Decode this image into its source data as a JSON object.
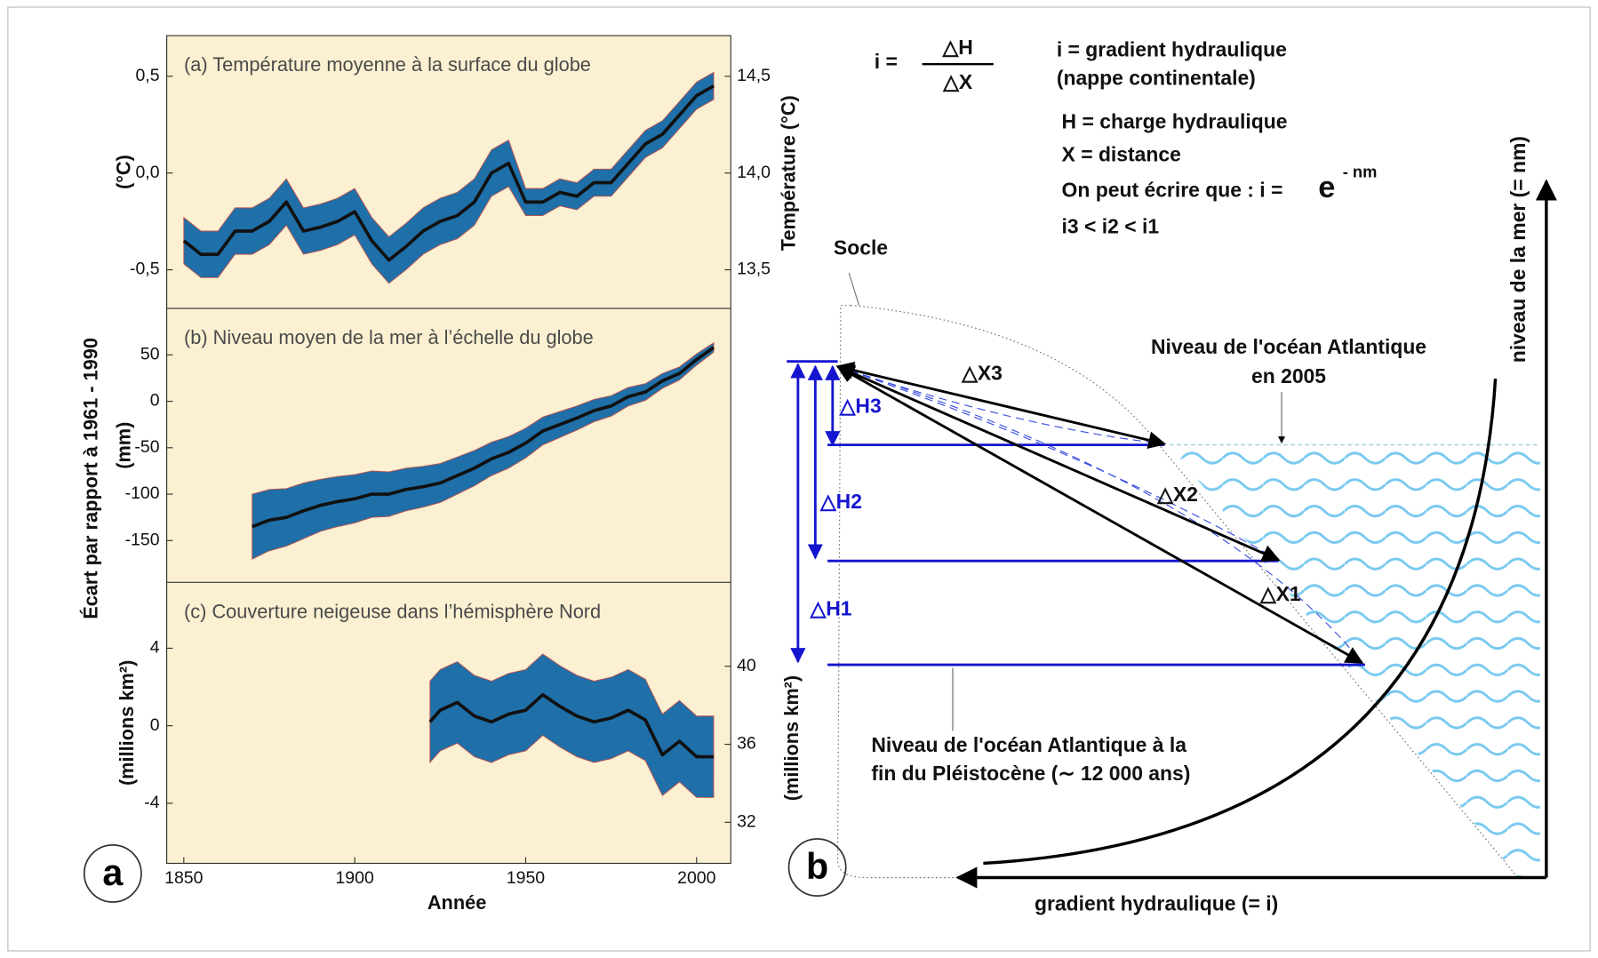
{
  "figure": {
    "ylabel": "Écart par rapport à 1961 - 1990",
    "xlabel": "Année",
    "panel_a": "a",
    "panel_b": "b"
  },
  "chart_data": [
    {
      "type": "line",
      "title": "(a) Température moyenne à la surface du globe",
      "ylabel": "(°C)",
      "y2label": "Température (°C)",
      "xlim": [
        1845,
        2010
      ],
      "ylim": [
        -0.7,
        0.71
      ],
      "y2lim": [
        13.3,
        14.71
      ],
      "yticks": [
        {
          "value": 0.5,
          "label": "0,5"
        },
        {
          "value": 0,
          "label": "0,0"
        },
        {
          "value": -0.5,
          "label": "-0,5"
        }
      ],
      "y2ticks": [
        {
          "value": 14.5,
          "label": "14,5"
        },
        {
          "value": 14,
          "label": "14,0"
        },
        {
          "value": 13.5,
          "label": "13,5"
        }
      ],
      "x": [
        1850,
        1855,
        1860,
        1865,
        1870,
        1875,
        1880,
        1885,
        1890,
        1895,
        1900,
        1905,
        1910,
        1915,
        1920,
        1925,
        1930,
        1935,
        1940,
        1945,
        1950,
        1955,
        1960,
        1965,
        1970,
        1975,
        1980,
        1985,
        1990,
        1995,
        2000,
        2005
      ],
      "series": [
        {
          "color": "#111111",
          "values": [
            -0.35,
            -0.42,
            -0.42,
            -0.3,
            -0.3,
            -0.25,
            -0.15,
            -0.3,
            -0.28,
            -0.25,
            -0.2,
            -0.35,
            -0.45,
            -0.38,
            -0.3,
            -0.25,
            -0.22,
            -0.15,
            0.0,
            0.05,
            -0.15,
            -0.15,
            -0.1,
            -0.12,
            -0.05,
            -0.05,
            0.05,
            0.15,
            0.2,
            0.3,
            0.4,
            0.45
          ]
        }
      ],
      "band": {
        "color": "#1f6fa8",
        "upper": [
          -0.23,
          -0.3,
          -0.3,
          -0.18,
          -0.18,
          -0.13,
          -0.03,
          -0.18,
          -0.16,
          -0.13,
          -0.08,
          -0.23,
          -0.33,
          -0.26,
          -0.18,
          -0.13,
          -0.1,
          -0.03,
          0.12,
          0.17,
          -0.08,
          -0.08,
          -0.03,
          -0.05,
          0.02,
          0.02,
          0.12,
          0.22,
          0.27,
          0.37,
          0.47,
          0.52
        ],
        "lower": [
          -0.47,
          -0.54,
          -0.54,
          -0.42,
          -0.42,
          -0.37,
          -0.27,
          -0.42,
          -0.4,
          -0.37,
          -0.32,
          -0.47,
          -0.57,
          -0.5,
          -0.42,
          -0.37,
          -0.34,
          -0.27,
          -0.12,
          -0.07,
          -0.22,
          -0.22,
          -0.17,
          -0.19,
          -0.12,
          -0.12,
          -0.02,
          0.08,
          0.13,
          0.23,
          0.33,
          0.38
        ]
      }
    },
    {
      "type": "line",
      "title": "(b) Niveau moyen de la mer à l’échelle du globe",
      "ylabel": "(mm)",
      "xlim": [
        1845,
        2010
      ],
      "ylim": [
        -195,
        100
      ],
      "yticks": [
        50,
        0,
        -50,
        -100,
        -150
      ],
      "x": [
        1870,
        1875,
        1880,
        1885,
        1890,
        1895,
        1900,
        1905,
        1910,
        1915,
        1920,
        1925,
        1930,
        1935,
        1940,
        1945,
        1950,
        1955,
        1960,
        1965,
        1970,
        1975,
        1980,
        1985,
        1990,
        1995,
        2000,
        2005
      ],
      "series": [
        {
          "color": "#111111",
          "values": [
            -135,
            -128,
            -125,
            -118,
            -112,
            -108,
            -105,
            -100,
            -100,
            -95,
            -92,
            -88,
            -80,
            -72,
            -62,
            -55,
            -45,
            -32,
            -25,
            -18,
            -10,
            -5,
            5,
            10,
            22,
            30,
            45,
            58
          ]
        }
      ],
      "band": {
        "color": "#1f6fa8",
        "upper": [
          -100,
          -95,
          -94,
          -88,
          -84,
          -81,
          -79,
          -75,
          -76,
          -72,
          -70,
          -67,
          -60,
          -53,
          -44,
          -38,
          -29,
          -17,
          -11,
          -5,
          2,
          6,
          15,
          19,
          30,
          37,
          51,
          63
        ],
        "lower": [
          -170,
          -161,
          -156,
          -148,
          -140,
          -135,
          -131,
          -125,
          -124,
          -118,
          -114,
          -109,
          -100,
          -91,
          -80,
          -72,
          -61,
          -47,
          -39,
          -31,
          -22,
          -16,
          -5,
          1,
          14,
          23,
          39,
          53
        ]
      }
    },
    {
      "type": "line",
      "title": "(c) Couverture neigeuse dans l’hémisphère Nord",
      "ylabel": "(millions km²)",
      "y2label": "(millions km²)",
      "xlim": [
        1845,
        2010
      ],
      "xticks": [
        1850,
        1900,
        1950,
        2000
      ],
      "ylim": [
        -7.1,
        7.4
      ],
      "yticks": [
        4,
        0,
        -4
      ],
      "y2lim": [
        29.9,
        44.3
      ],
      "y2ticks": [
        40,
        36,
        32
      ],
      "x": [
        1922,
        1925,
        1930,
        1935,
        1940,
        1945,
        1950,
        1955,
        1960,
        1965,
        1970,
        1975,
        1980,
        1985,
        1990,
        1995,
        2000,
        2005
      ],
      "series": [
        {
          "color": "#111111",
          "values": [
            0.2,
            0.8,
            1.2,
            0.5,
            0.2,
            0.6,
            0.8,
            1.6,
            1.0,
            0.5,
            0.2,
            0.4,
            0.8,
            0.3,
            -1.5,
            -0.8,
            -1.6,
            -1.6
          ]
        }
      ],
      "band": {
        "color": "#1f6fa8",
        "upper": [
          2.3,
          2.9,
          3.3,
          2.6,
          2.3,
          2.7,
          2.9,
          3.7,
          3.1,
          2.6,
          2.3,
          2.5,
          2.9,
          2.4,
          0.6,
          1.3,
          0.5,
          0.5
        ],
        "lower": [
          -1.9,
          -1.3,
          -0.9,
          -1.6,
          -1.9,
          -1.5,
          -1.3,
          -0.5,
          -1.1,
          -1.6,
          -1.9,
          -1.7,
          -1.3,
          -1.8,
          -3.6,
          -2.9,
          -3.7,
          -3.7
        ]
      }
    }
  ],
  "diagram": {
    "formula": {
      "lhs": "i =",
      "numerator": "△H",
      "denominator": "△X"
    },
    "definitions": [
      "i = gradient hydraulique",
      "(nappe continentale)",
      "H = charge hydraulique",
      "X = distance"
    ],
    "relation": {
      "text": "On peut écrire que : i =",
      "base": "e",
      "exponent": "- nm"
    },
    "order": "i3 < i2 < i1",
    "socle": "Socle",
    "level_2005": [
      "Niveau de l'océan Atlantique",
      "en 2005"
    ],
    "level_pleistocene": [
      "Niveau de l'océan Atlantique à la",
      "fin du Pléistocène (∼ 12 000 ans)"
    ],
    "dx": [
      "△X1",
      "△X2",
      "△X3"
    ],
    "dh": [
      "△H1",
      "△H2",
      "△H3"
    ],
    "x_axis": "gradient hydraulique (= i)",
    "y_axis": "niveau de la mer (= nm)"
  }
}
